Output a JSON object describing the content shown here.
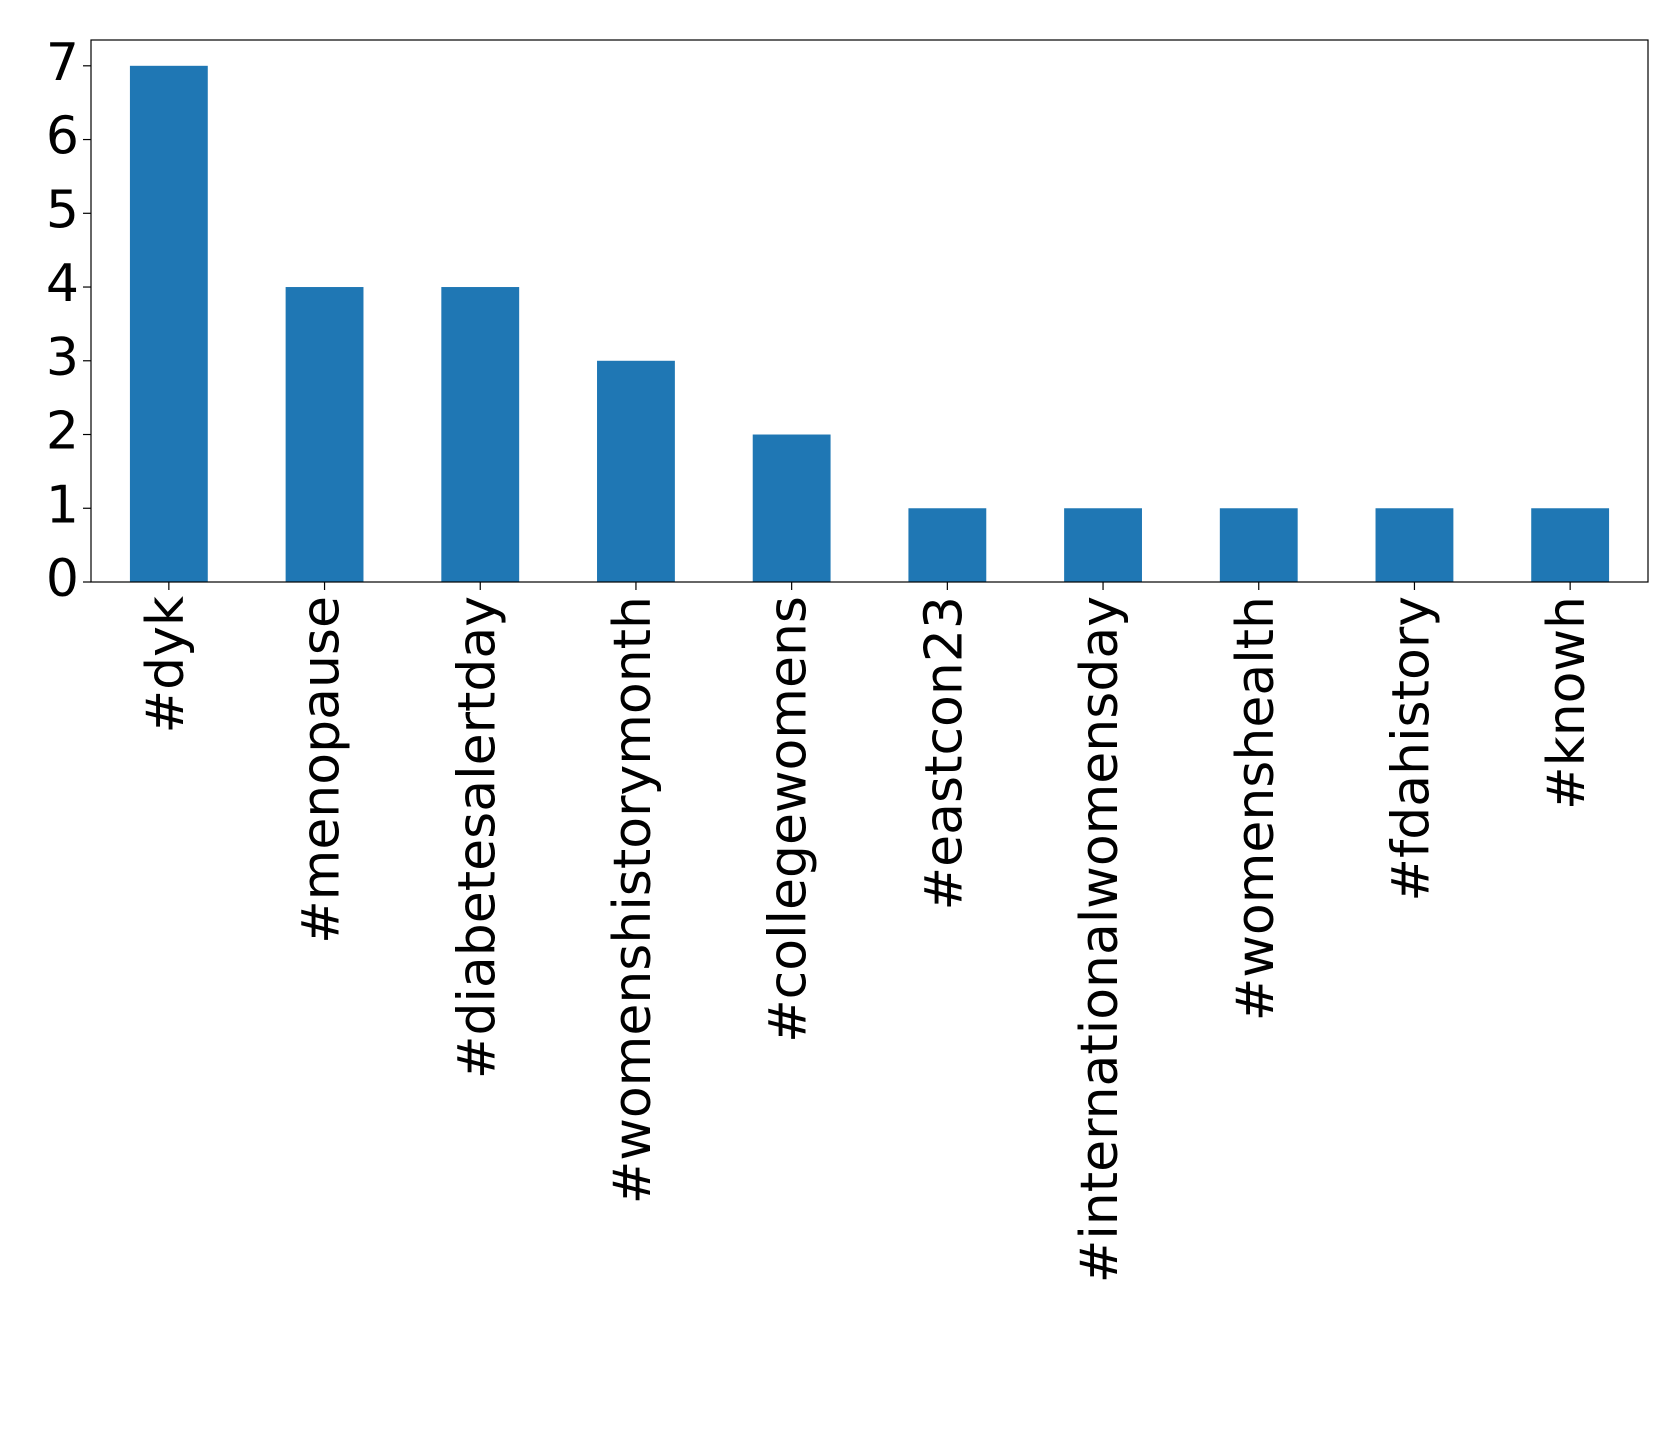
{
  "chart_data": {
    "type": "bar",
    "categories": [
      "#dyk",
      "#menopause",
      "#diabetesalertday",
      "#womenshistorymonth",
      "#collegewomens",
      "#eastcon23",
      "#internationalwomensday",
      "#womenshealth",
      "#fdahistory",
      "#knowh"
    ],
    "values": [
      7,
      4,
      4,
      3,
      2,
      1,
      1,
      1,
      1,
      1
    ],
    "color": "#1f77b4",
    "ylim": [
      0,
      7.35
    ],
    "yticks": [
      0,
      1,
      2,
      3,
      4,
      5,
      6,
      7
    ],
    "grid": false
  }
}
